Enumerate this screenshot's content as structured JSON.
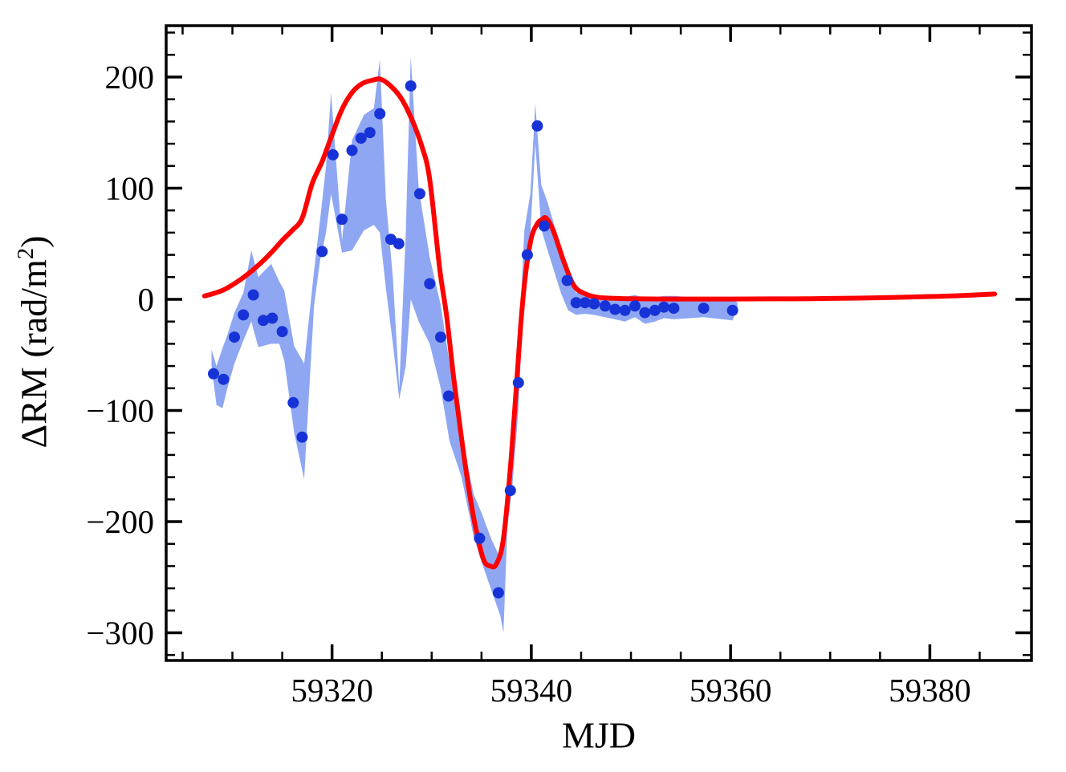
{
  "figure": {
    "background": "#ffffff",
    "frame_color": "#000000"
  },
  "chart_data": {
    "type": "scatter",
    "title": "",
    "xlabel": "MJD",
    "ylabel": "ΔRM (rad/m²)",
    "ylabel_parts": {
      "pre": "ΔRM (rad/m",
      "sup": "2",
      "post": ")"
    },
    "x_range": [
      59303.35,
      59390.2
    ],
    "y_range": [
      -324.9,
      246.2
    ],
    "grid": "off",
    "legend": "none",
    "x_ticks": {
      "major": [
        59320,
        59340,
        59360,
        59380
      ],
      "labels": [
        "59320",
        "59340",
        "59360",
        "59380"
      ],
      "minor_step": 5
    },
    "y_ticks": {
      "major": [
        200,
        100,
        0,
        -100,
        -200,
        -300
      ],
      "labels": [
        "200",
        "100",
        "0",
        "−100",
        "−200",
        "−300"
      ],
      "minor_step": 20
    },
    "colors": {
      "point": "#1733d8",
      "band": "#8fa7f2",
      "model": "#fe0000",
      "frame": "#000000"
    },
    "points": {
      "x": [
        59308.1,
        59309.1,
        59310.2,
        59311.1,
        59312.1,
        59313.1,
        59314.0,
        59315.0,
        59316.1,
        59317.0,
        59319.0,
        59320.1,
        59321.0,
        59322.0,
        59322.9,
        59323.8,
        59324.8,
        59325.9,
        59326.7,
        59327.9,
        59328.8,
        59329.8,
        59330.9,
        59331.7,
        59334.8,
        59336.7,
        59337.9,
        59338.7,
        59339.6,
        59340.6,
        59341.3,
        59343.6,
        59344.5,
        59345.4,
        59346.3,
        59347.4,
        59348.4,
        59349.4,
        59350.4,
        59351.4,
        59352.4,
        59353.3,
        59354.3,
        59357.3,
        59360.2
      ],
      "y": [
        -67,
        -72,
        -34,
        -14,
        4,
        -19,
        -17,
        -29,
        -93,
        -124,
        43,
        130,
        72,
        134,
        145,
        150,
        167,
        54,
        50,
        192,
        95,
        14,
        -34,
        -87,
        -215,
        -264,
        -172,
        -75,
        40,
        156,
        66,
        17,
        -3,
        -3,
        -4,
        -6,
        -9,
        -10,
        -6,
        -12,
        -10,
        -7,
        -8,
        -8,
        -10
      ]
    },
    "band": {
      "x": [
        59307.9,
        59308.4,
        59309.0,
        59309.5,
        59310.2,
        59311.1,
        59311.9,
        59312.6,
        59313.9,
        59314.7,
        59315.2,
        59316.2,
        59317.2,
        59318.2,
        59318.8,
        59319.4,
        59319.9,
        59321.0,
        59322.0,
        59323.2,
        59324.2,
        59324.8,
        59325.4,
        59326.1,
        59326.75,
        59327.4,
        59327.9,
        59328.7,
        59329.8,
        59330.9,
        59331.8,
        59333.0,
        59334.2,
        59335.0,
        59336.0,
        59336.9,
        59337.2,
        59337.6,
        59338.1,
        59338.7,
        59339.3,
        59339.9,
        59340.4,
        59341.0,
        59341.6,
        59342.2,
        59343.0,
        59343.7,
        59344.5,
        59345.4,
        59346.3,
        59347.4,
        59348.4,
        59349.4,
        59350.4,
        59351.4,
        59352.4,
        59353.3,
        59354.3,
        59357.3,
        59360.2,
        59360.7
      ],
      "upper": [
        -45,
        -60,
        -44,
        -32,
        -12,
        6,
        44,
        20,
        32,
        16,
        8,
        -42,
        -58,
        26,
        72,
        120,
        186,
        53,
        143,
        166,
        172,
        216,
        90,
        20,
        -80,
        60,
        219,
        100,
        38,
        -5,
        -58,
        -122,
        -175,
        -192,
        -216,
        -233,
        -228,
        -160,
        -118,
        -48,
        62,
        95,
        176,
        103,
        88,
        70,
        40,
        16,
        6,
        5,
        4,
        3,
        2,
        2,
        4,
        1,
        2,
        3,
        3,
        1,
        1,
        -3
      ],
      "lower": [
        -60,
        -95,
        -98,
        -80,
        -58,
        -37,
        -20,
        -43,
        -40,
        -40,
        -55,
        -120,
        -162,
        -5,
        35,
        60,
        95,
        42,
        44,
        62,
        67,
        60,
        10,
        -40,
        -90,
        -60,
        0,
        -20,
        -40,
        -80,
        -128,
        -160,
        -213,
        -236,
        -262,
        -285,
        -300,
        -205,
        -168,
        -100,
        15,
        60,
        140,
        63,
        45,
        28,
        5,
        -10,
        -14,
        -13,
        -14,
        -16,
        -18,
        -20,
        -16,
        -22,
        -20,
        -17,
        -18,
        -16,
        -19,
        -8
      ]
    },
    "model": {
      "x": [
        59307.2,
        59308,
        59309,
        59310,
        59311,
        59312,
        59313,
        59314,
        59315,
        59316,
        59317,
        59318,
        59319,
        59320,
        59321,
        59322,
        59323,
        59324,
        59324.9,
        59326,
        59327,
        59328,
        59329,
        59329.8,
        59330.8,
        59331.5,
        59332.2,
        59333,
        59333.7,
        59334.4,
        59335.2,
        59335.9,
        59336.5,
        59337.2,
        59338,
        59338.9,
        59339.4,
        59340,
        59340.6,
        59341.1,
        59341.5,
        59342.2,
        59343.3,
        59344.3,
        59345.4,
        59346.5,
        59348,
        59350,
        59353,
        59356,
        59360,
        59364,
        59368,
        59372,
        59376,
        59380,
        59383,
        59386.5
      ],
      "y": [
        3,
        5,
        8,
        13,
        19,
        26,
        34,
        43,
        53,
        62,
        73,
        104,
        124,
        148,
        171,
        186,
        194,
        197,
        198,
        191,
        180,
        162,
        138,
        108,
        28,
        -15,
        -70,
        -125,
        -169,
        -205,
        -234,
        -240,
        -238,
        -215,
        -140,
        -27,
        21,
        55,
        68,
        72,
        73,
        62,
        33,
        12,
        5,
        2,
        1,
        0.5,
        0.3,
        0.3,
        0.3,
        0.4,
        0.6,
        1,
        1.6,
        2.5,
        3.3,
        4.8
      ]
    },
    "style": {
      "point_radius": 7,
      "model_width": 6,
      "frame_width": 3.5,
      "major_tick_len": 20,
      "minor_tick_len": 11
    }
  }
}
